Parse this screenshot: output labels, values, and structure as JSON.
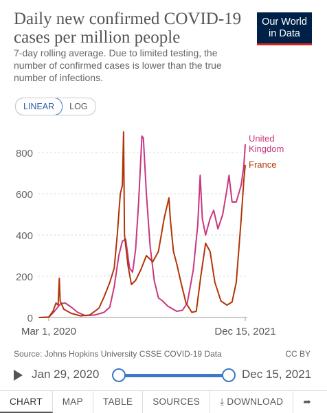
{
  "header": {
    "title": "Daily new confirmed COVID-19 cases per million people",
    "subtitle": "7-day rolling average. Due to limited testing, the number of confirmed cases is lower than the true number of infections.",
    "logo_line1": "Our World",
    "logo_line2": "in Data"
  },
  "scale_toggle": {
    "linear_label": "LINEAR",
    "log_label": "LOG",
    "selected": "LINEAR"
  },
  "chart_data": {
    "type": "line",
    "title": "Daily new confirmed COVID-19 cases per million people",
    "x_axis": {
      "type": "date",
      "range": [
        "2020-01-29",
        "2021-12-15"
      ],
      "tick_labels": [
        "Mar 1, 2020",
        "Dec 15, 2021"
      ]
    },
    "y_axis": {
      "range": [
        0,
        900
      ],
      "ticks": [
        0,
        200,
        400,
        600,
        800
      ],
      "tick_labels": [
        "0",
        "200",
        "400",
        "600",
        "800"
      ]
    },
    "grid": "horizontal dashed",
    "legend": "line-end labels",
    "series": [
      {
        "name": "United Kingdom",
        "color": "#c8367f",
        "points": [
          [
            "2020-01-29",
            0
          ],
          [
            "2020-03-01",
            1
          ],
          [
            "2020-03-20",
            30
          ],
          [
            "2020-04-10",
            68
          ],
          [
            "2020-04-25",
            70
          ],
          [
            "2020-05-15",
            50
          ],
          [
            "2020-06-05",
            25
          ],
          [
            "2020-07-01",
            9
          ],
          [
            "2020-08-01",
            12
          ],
          [
            "2020-09-01",
            25
          ],
          [
            "2020-09-20",
            50
          ],
          [
            "2020-10-05",
            150
          ],
          [
            "2020-10-20",
            300
          ],
          [
            "2020-11-01",
            370
          ],
          [
            "2020-11-12",
            380
          ],
          [
            "2020-11-25",
            240
          ],
          [
            "2020-12-05",
            220
          ],
          [
            "2020-12-15",
            330
          ],
          [
            "2020-12-25",
            560
          ],
          [
            "2021-01-05",
            880
          ],
          [
            "2021-01-10",
            870
          ],
          [
            "2021-01-20",
            600
          ],
          [
            "2021-02-01",
            350
          ],
          [
            "2021-02-15",
            180
          ],
          [
            "2021-03-01",
            95
          ],
          [
            "2021-03-15",
            80
          ],
          [
            "2021-04-01",
            55
          ],
          [
            "2021-05-01",
            30
          ],
          [
            "2021-05-20",
            35
          ],
          [
            "2021-06-05",
            70
          ],
          [
            "2021-06-25",
            230
          ],
          [
            "2021-07-10",
            450
          ],
          [
            "2021-07-18",
            690
          ],
          [
            "2021-07-25",
            480
          ],
          [
            "2021-08-05",
            400
          ],
          [
            "2021-08-20",
            480
          ],
          [
            "2021-09-01",
            520
          ],
          [
            "2021-09-15",
            430
          ],
          [
            "2021-10-01",
            500
          ],
          [
            "2021-10-15",
            620
          ],
          [
            "2021-10-22",
            690
          ],
          [
            "2021-11-01",
            560
          ],
          [
            "2021-11-15",
            560
          ],
          [
            "2021-12-01",
            640
          ],
          [
            "2021-12-10",
            730
          ],
          [
            "2021-12-15",
            840
          ]
        ]
      },
      {
        "name": "France",
        "color": "#b13507",
        "points": [
          [
            "2020-01-29",
            0
          ],
          [
            "2020-03-01",
            2
          ],
          [
            "2020-03-15",
            30
          ],
          [
            "2020-03-25",
            70
          ],
          [
            "2020-04-01",
            60
          ],
          [
            "2020-04-05",
            190
          ],
          [
            "2020-04-08",
            80
          ],
          [
            "2020-04-20",
            40
          ],
          [
            "2020-05-15",
            20
          ],
          [
            "2020-06-15",
            8
          ],
          [
            "2020-07-15",
            12
          ],
          [
            "2020-08-15",
            45
          ],
          [
            "2020-09-01",
            100
          ],
          [
            "2020-09-20",
            170
          ],
          [
            "2020-10-05",
            240
          ],
          [
            "2020-10-15",
            400
          ],
          [
            "2020-10-25",
            600
          ],
          [
            "2020-11-01",
            640
          ],
          [
            "2020-11-05",
            900
          ],
          [
            "2020-11-08",
            400
          ],
          [
            "2020-11-20",
            250
          ],
          [
            "2020-12-01",
            160
          ],
          [
            "2020-12-15",
            180
          ],
          [
            "2021-01-01",
            230
          ],
          [
            "2021-01-20",
            300
          ],
          [
            "2021-02-10",
            270
          ],
          [
            "2021-03-01",
            320
          ],
          [
            "2021-03-20",
            480
          ],
          [
            "2021-04-05",
            580
          ],
          [
            "2021-04-10",
            470
          ],
          [
            "2021-04-20",
            320
          ],
          [
            "2021-05-01",
            260
          ],
          [
            "2021-05-15",
            170
          ],
          [
            "2021-06-01",
            70
          ],
          [
            "2021-06-20",
            25
          ],
          [
            "2021-07-05",
            30
          ],
          [
            "2021-07-20",
            200
          ],
          [
            "2021-08-05",
            360
          ],
          [
            "2021-08-20",
            320
          ],
          [
            "2021-09-05",
            170
          ],
          [
            "2021-09-25",
            80
          ],
          [
            "2021-10-15",
            60
          ],
          [
            "2021-11-01",
            75
          ],
          [
            "2021-11-15",
            170
          ],
          [
            "2021-12-01",
            470
          ],
          [
            "2021-12-10",
            660
          ],
          [
            "2021-12-15",
            740
          ]
        ]
      }
    ]
  },
  "footer": {
    "source": "Source: Johns Hopkins University CSSE COVID-19 Data",
    "license": "CC BY"
  },
  "timeline": {
    "start": "Jan 29, 2020",
    "end": "Dec 15, 2021"
  },
  "tabs": [
    "CHART",
    "MAP",
    "TABLE",
    "SOURCES",
    "DOWNLOAD"
  ],
  "icons": {
    "play": "play-icon",
    "download": "download-icon",
    "share": "share-icon"
  }
}
